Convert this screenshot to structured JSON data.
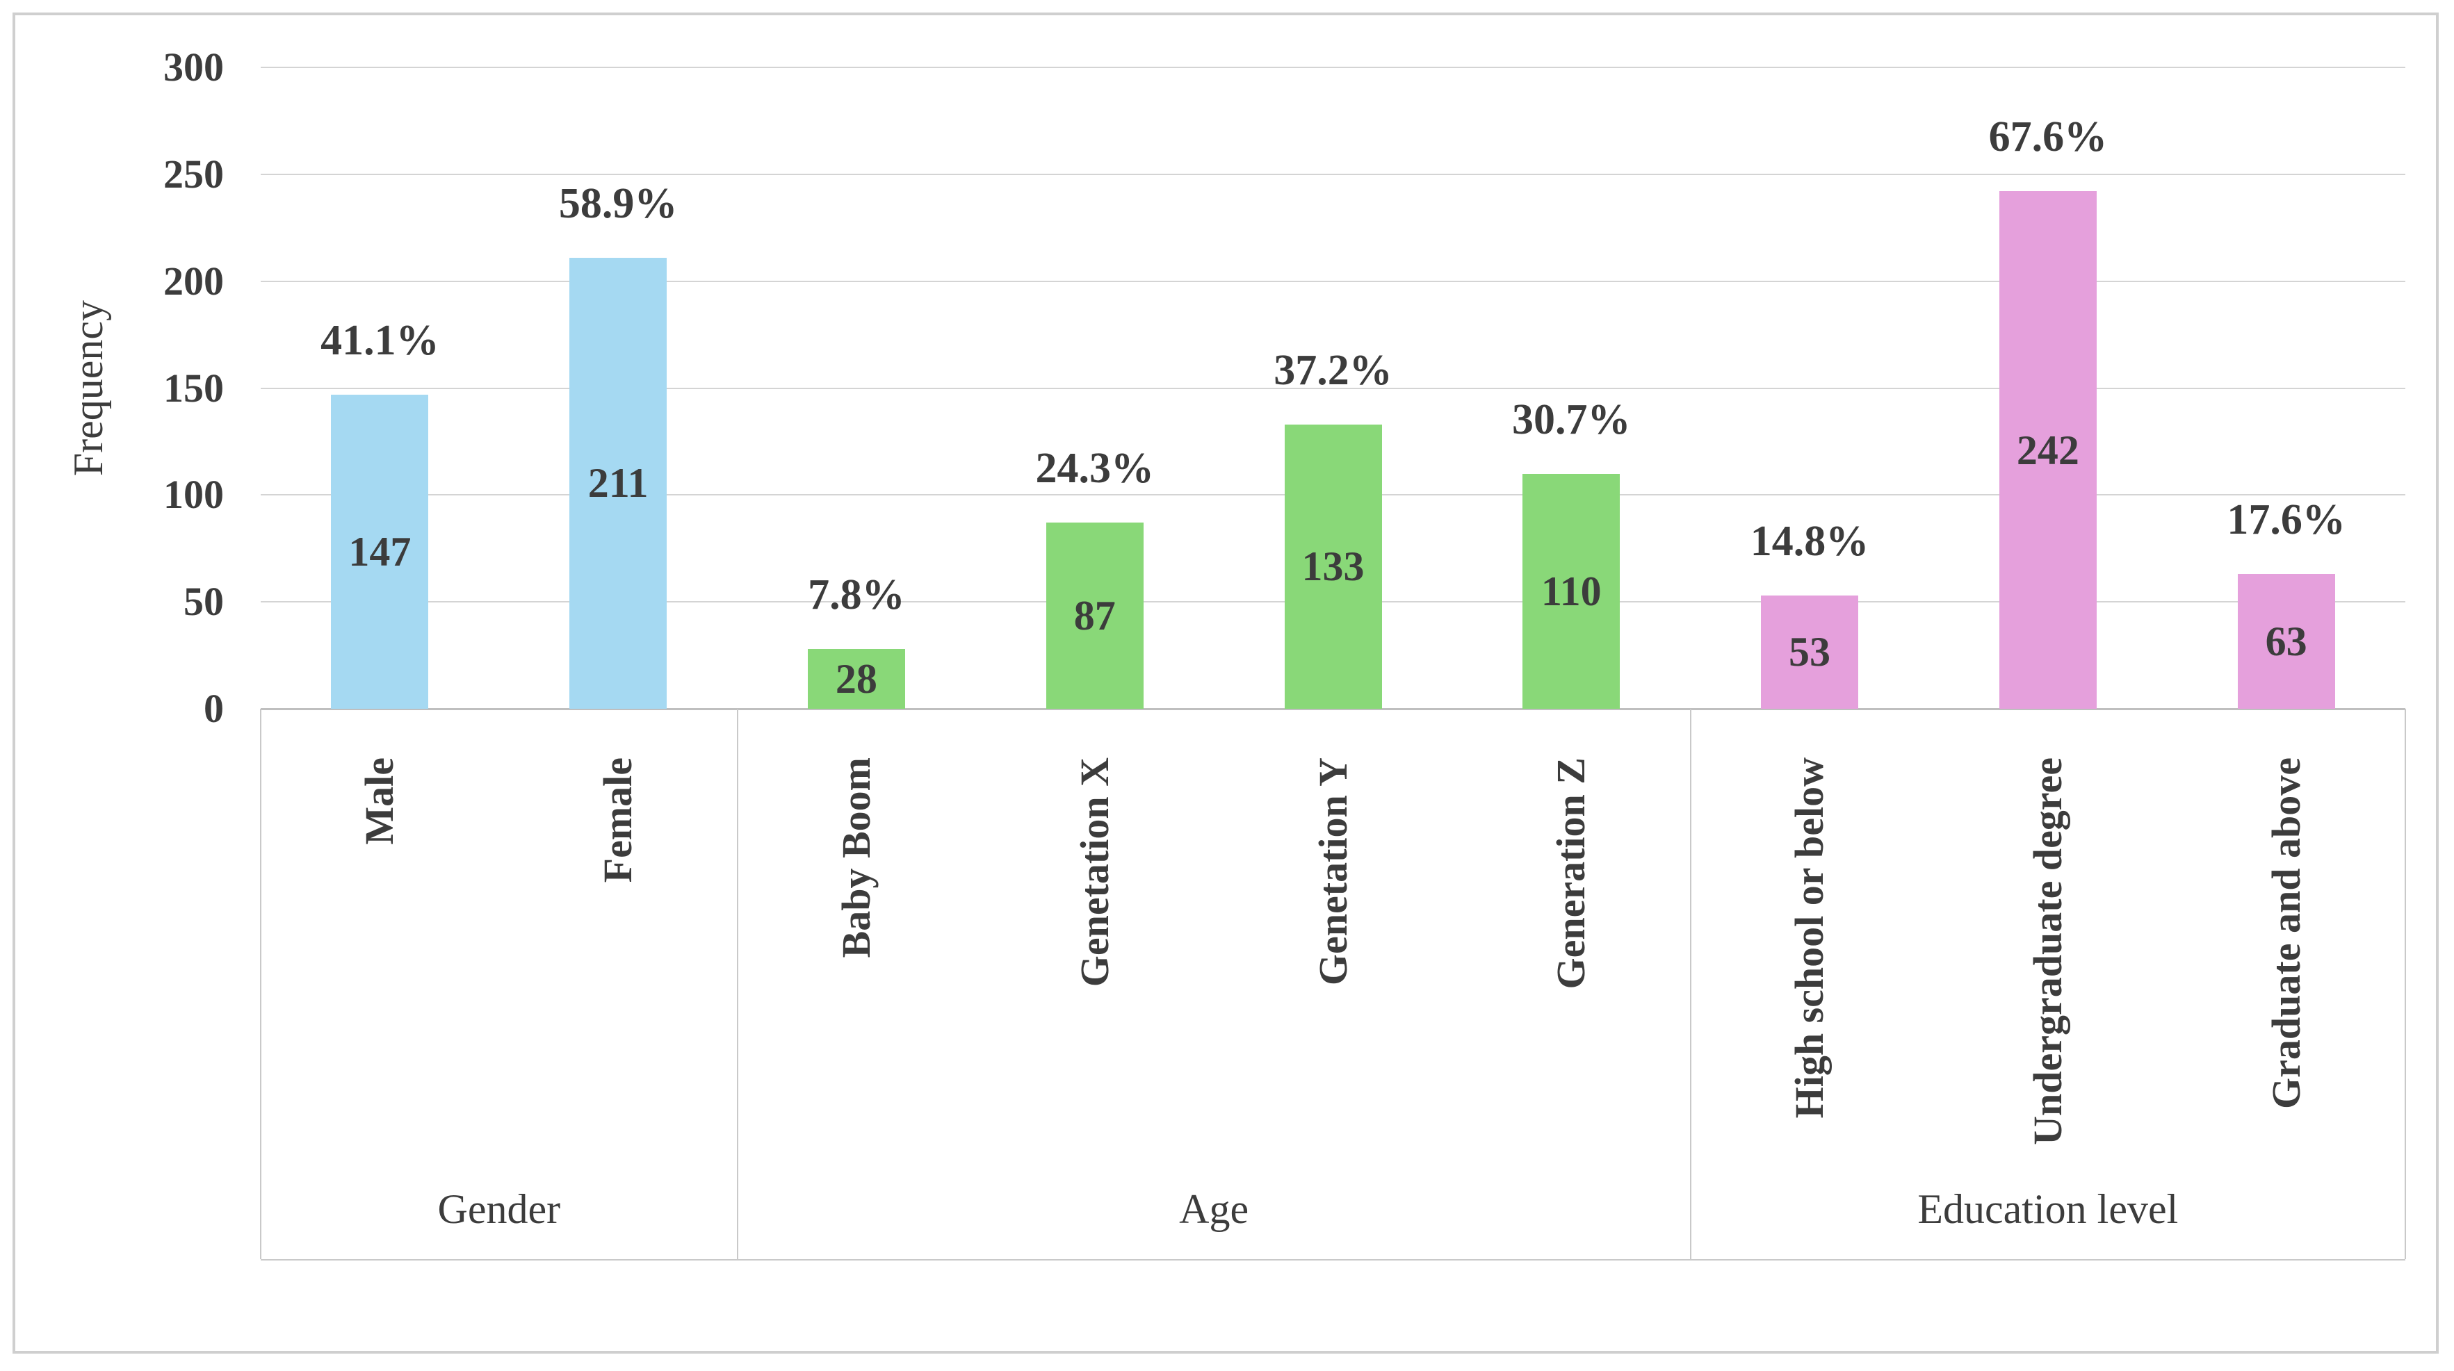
{
  "chart_data": {
    "type": "bar",
    "title": "",
    "ylabel": "Frequency",
    "xlabel": "",
    "ylim": [
      0,
      300
    ],
    "ytick_step": 50,
    "grid": true,
    "legend": "none",
    "groups": [
      {
        "label": "Gender",
        "color": "#A5D9F2",
        "bars": [
          {
            "category": "Male",
            "value": 147,
            "pct_label": "41.1%"
          },
          {
            "category": "Female",
            "value": 211,
            "pct_label": "58.9%"
          }
        ]
      },
      {
        "label": "Age",
        "color": "#89D878",
        "bars": [
          {
            "category": "Baby Boom",
            "value": 28,
            "pct_label": "7.8%"
          },
          {
            "category": "Genetation X",
            "value": 87,
            "pct_label": "24.3%"
          },
          {
            "category": "Genetation Y",
            "value": 133,
            "pct_label": "37.2%"
          },
          {
            "category": "Generation Z",
            "value": 110,
            "pct_label": "30.7%"
          }
        ]
      },
      {
        "label": "Education level",
        "color": "#E5A0DC",
        "bars": [
          {
            "category": "High school or below",
            "value": 53,
            "pct_label": "14.8%"
          },
          {
            "category": "Undergraduate degree",
            "value": 242,
            "pct_label": "67.6%"
          },
          {
            "category": "Graduate and above",
            "value": 63,
            "pct_label": "17.6%"
          }
        ]
      }
    ],
    "colors": {
      "text": "#3C3C3C",
      "gridline": "#D4D4D4",
      "axis_line": "#BFBFBF",
      "band_line": "#C9C9C9",
      "frame_border": "#CFCFCF",
      "background": "#FFFFFF"
    }
  }
}
